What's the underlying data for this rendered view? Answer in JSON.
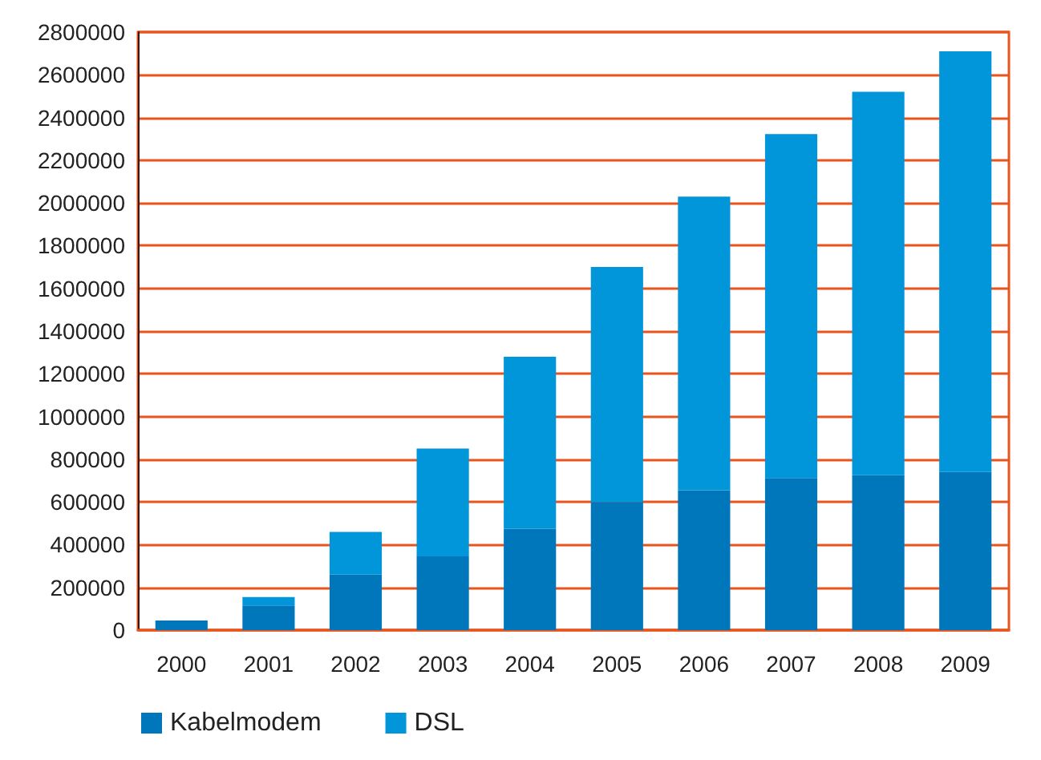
{
  "chart_data": {
    "type": "bar",
    "stacked": true,
    "categories": [
      "2000",
      "2001",
      "2002",
      "2003",
      "2004",
      "2005",
      "2006",
      "2007",
      "2008",
      "2009"
    ],
    "series": [
      {
        "name": "Kabelmodem",
        "color": "#0077bb",
        "values": [
          45000,
          115000,
          260000,
          345000,
          475000,
          600000,
          655000,
          712000,
          725000,
          740000
        ]
      },
      {
        "name": "DSL",
        "color": "#0096d9",
        "values": [
          0,
          40000,
          200000,
          505000,
          805000,
          1100000,
          1375000,
          1610000,
          1795000,
          1970000
        ]
      }
    ],
    "ylim": [
      0,
      2800000
    ],
    "yticks": [
      0,
      200000,
      400000,
      600000,
      800000,
      1000000,
      1200000,
      1400000,
      1600000,
      1800000,
      2000000,
      2200000,
      2400000,
      2600000,
      2800000
    ],
    "grid": "y",
    "legend": "bottom left"
  }
}
